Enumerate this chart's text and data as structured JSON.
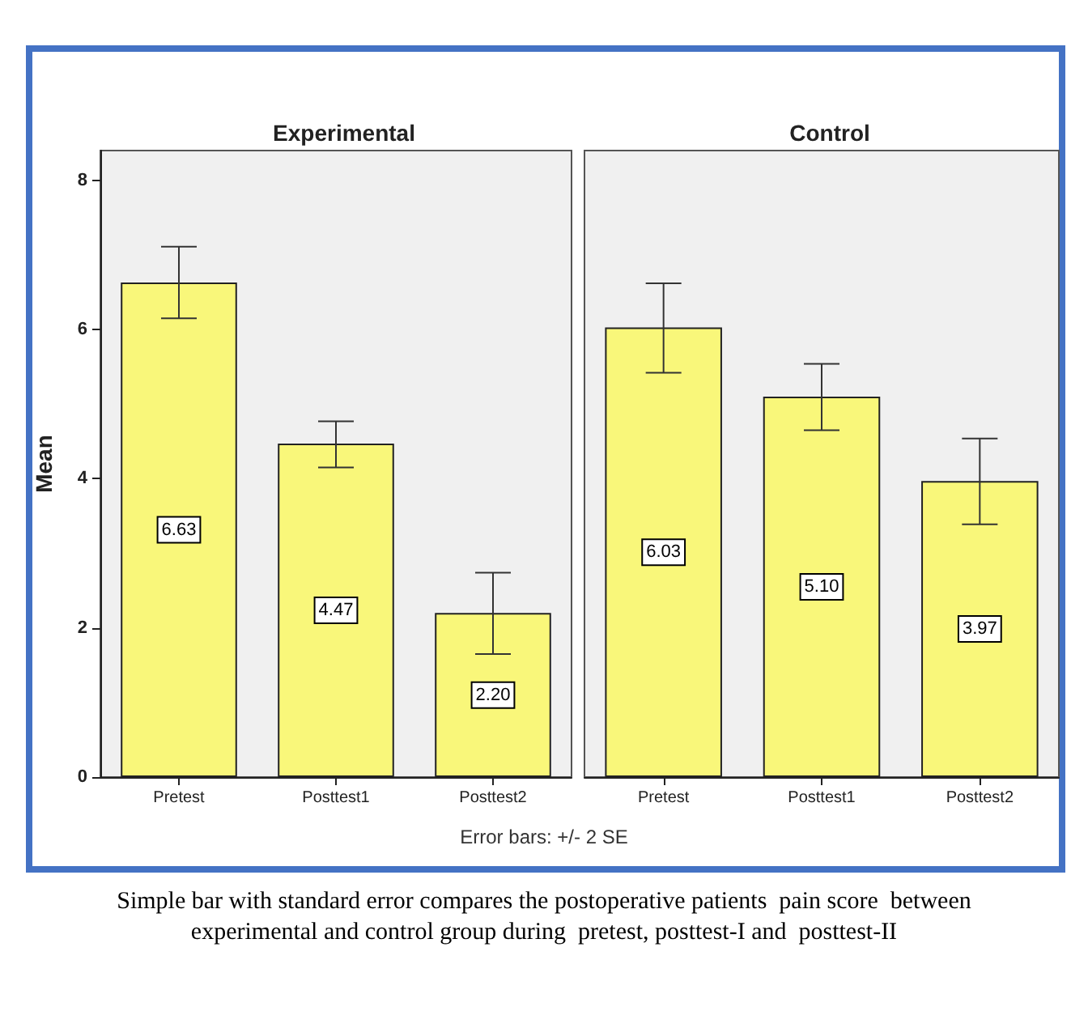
{
  "chart_data": [
    {
      "type": "bar",
      "title": "Experimental",
      "ylabel": "Mean",
      "categories": [
        "Pretest",
        "Posttest1",
        "Posttest2"
      ],
      "values": [
        6.63,
        4.47,
        2.2
      ],
      "value_labels": [
        "6.63",
        "4.47",
        "2.20"
      ],
      "color": "#f9f77a",
      "errors": [
        [
          6.15,
          7.11
        ],
        [
          4.15,
          4.77
        ],
        [
          1.65,
          2.74
        ]
      ],
      "ylim": [
        0,
        8.4
      ],
      "yticks": [
        0,
        2,
        4,
        6,
        8
      ],
      "grid": false,
      "annotations": [
        "Error bars: +/- 2 SE",
        "Simple bar with standard error compares the postoperative patients  pain score  between experimental and control group during  pretest, posttest-I and  posttest-II"
      ]
    },
    {
      "type": "bar",
      "title": "Control",
      "categories": [
        "Pretest",
        "Posttest1",
        "Posttest2"
      ],
      "values": [
        6.03,
        5.1,
        3.97
      ],
      "value_labels": [
        "6.03",
        "5.10",
        "3.97"
      ],
      "color": "#f9f77a",
      "errors": [
        [
          5.42,
          6.62
        ],
        [
          4.65,
          5.54
        ],
        [
          3.39,
          4.54
        ]
      ],
      "ylim": [
        0,
        8.4
      ],
      "yticks": [
        0,
        2,
        4,
        6,
        8
      ],
      "grid": false,
      "tick_labels": "x"
    }
  ]
}
